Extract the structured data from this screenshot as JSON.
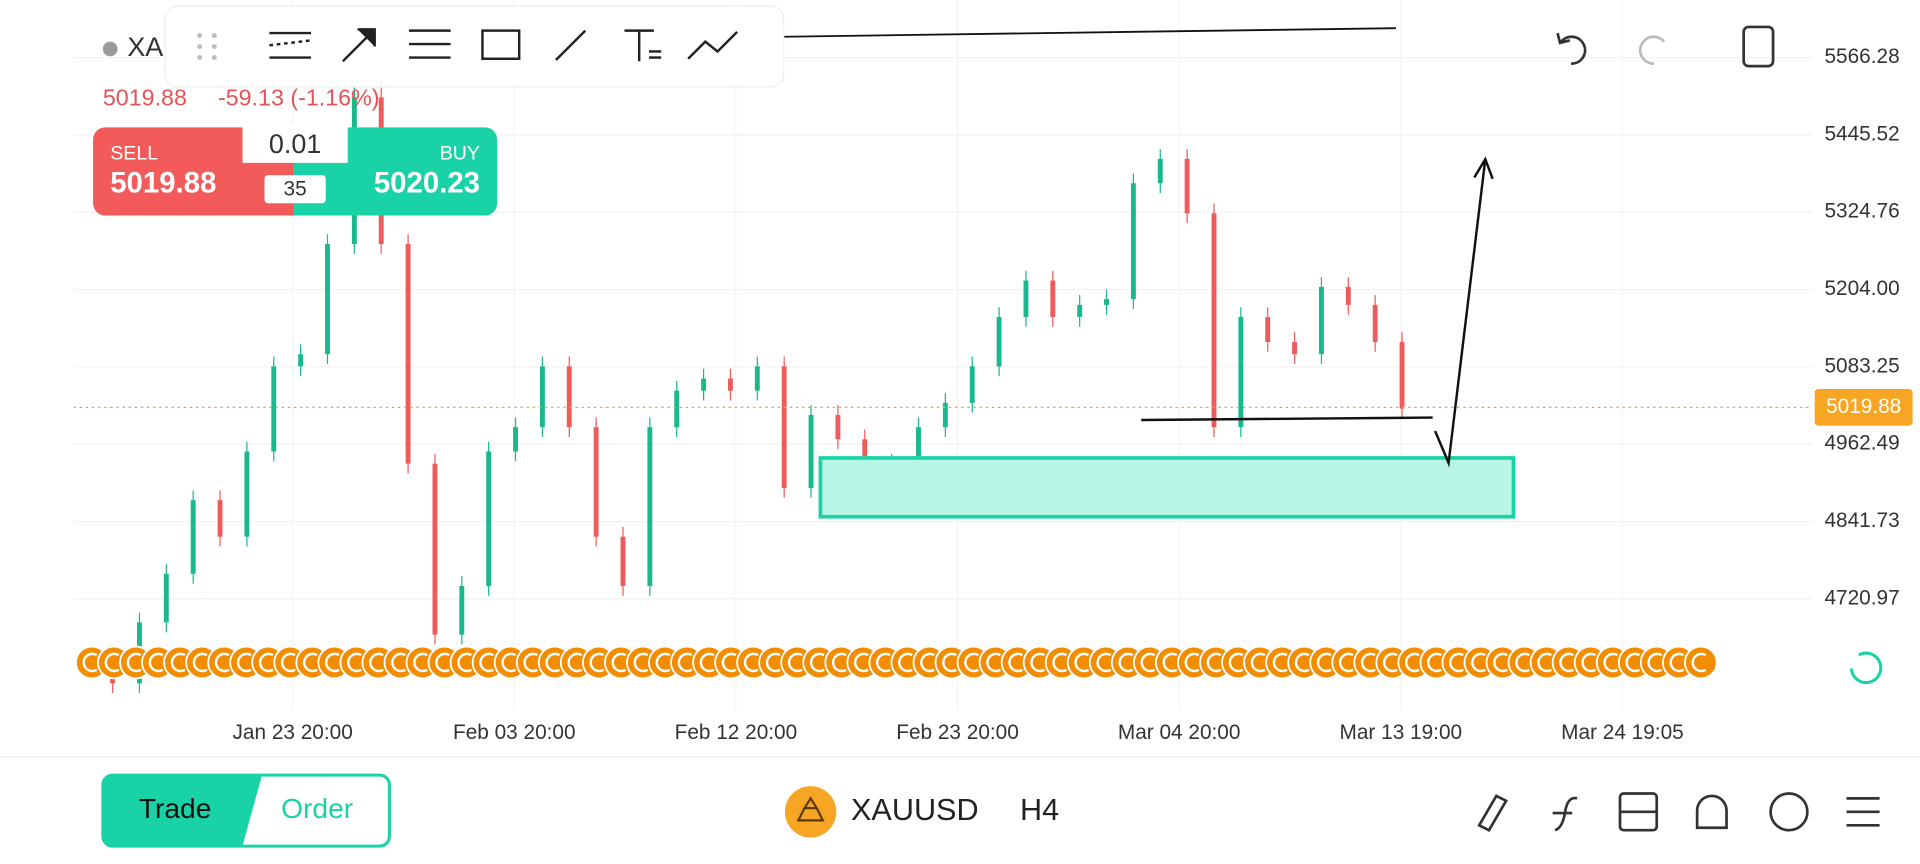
{
  "header": {
    "symbol": "XA",
    "last_price": "5019.88",
    "change": "-59.13 (-1.16%)"
  },
  "trade_panel": {
    "sell_label": "SELL",
    "sell_price": "5019.88",
    "buy_label": "BUY",
    "buy_price": "5020.23",
    "volume": "0.01",
    "spread": "35"
  },
  "chart": {
    "closes": [
      4618,
      4589,
      4684,
      4760,
      4875,
      4818,
      4951,
      5084,
      5103,
      5275,
      5504,
      5275,
      4932,
      4665,
      4741,
      4951,
      4989,
      5084,
      4989,
      4818,
      4741,
      4989,
      5046,
      5065,
      5046,
      5084,
      4894,
      5008,
      4970,
      4894,
      4932,
      4989,
      5027,
      5084,
      5161,
      5218,
      5161,
      5180,
      5189,
      5370,
      5408,
      5323,
      4989,
      5161,
      5122,
      5103,
      5208,
      5180,
      5122,
      5018
    ],
    "price_ticks": [
      5566.28,
      5445.52,
      5324.76,
      {
        "value": 5204,
        "label": "5204.00"
      },
      5083.25,
      4962.49,
      4841.73,
      4720.97
    ],
    "current_price": 5019.88,
    "dates": [
      "Jan 23 20:00",
      "Feb 03 20:00",
      "Feb 12 20:00",
      "Feb 23 20:00",
      "Mar 04 20:00",
      "Mar 13 19:00",
      "Mar 24 19:05"
    ]
  },
  "footer": {
    "tabs": [
      "Trade",
      "Order"
    ],
    "symbol": "XAUUSD",
    "timeframe": "H4"
  }
}
